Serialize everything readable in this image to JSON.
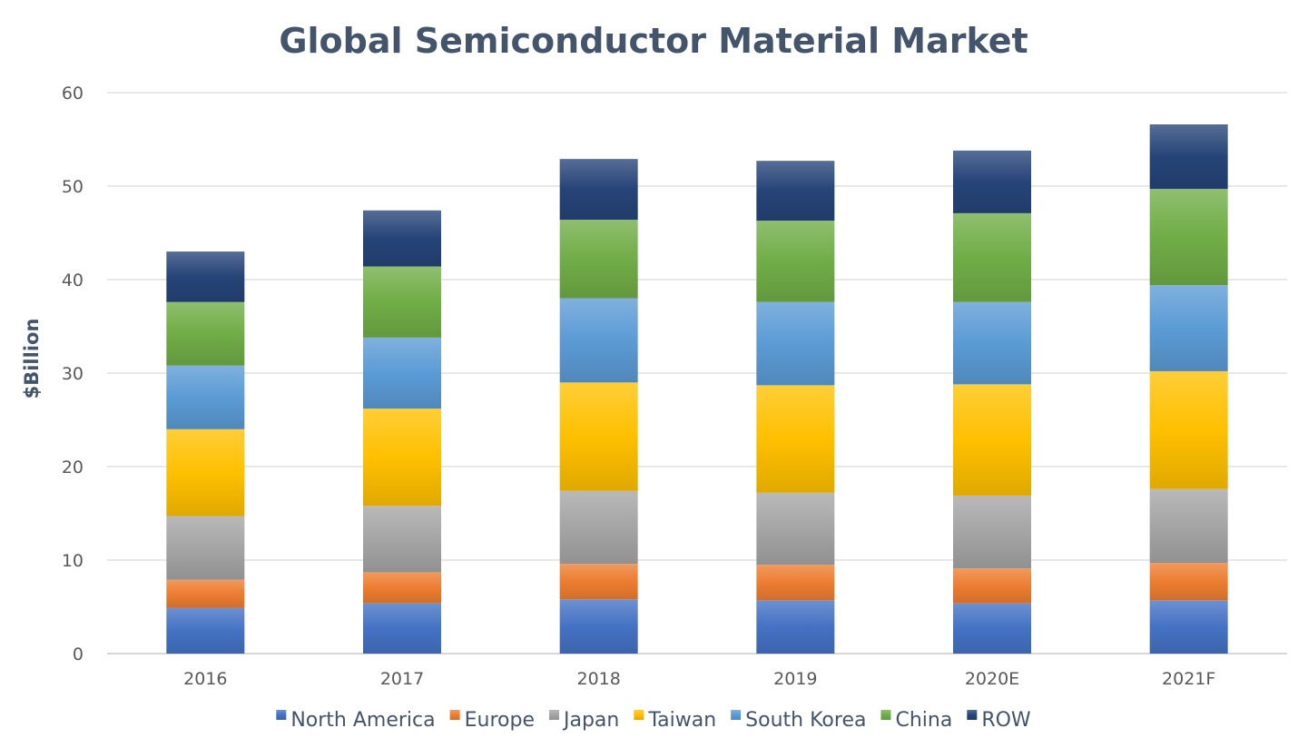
{
  "chart_data": {
    "type": "bar",
    "stacked": true,
    "title": "Global Semiconductor Material Market",
    "xlabel": "",
    "ylabel": "$Billion",
    "ylim": [
      0,
      60
    ],
    "yticks": [
      0,
      10,
      20,
      30,
      40,
      50,
      60
    ],
    "grid": true,
    "legend_position": "bottom",
    "categories": [
      "2016",
      "2017",
      "2018",
      "2019",
      "2020E",
      "2021F"
    ],
    "series": [
      {
        "name": "North America",
        "color": "#4472c4",
        "values": [
          4.9,
          5.4,
          5.8,
          5.7,
          5.4,
          5.7
        ]
      },
      {
        "name": "Europe",
        "color": "#ed7d31",
        "values": [
          3.0,
          3.3,
          3.8,
          3.8,
          3.7,
          4.0
        ]
      },
      {
        "name": "Japan",
        "color": "#a5a5a5",
        "values": [
          6.8,
          7.1,
          7.8,
          7.7,
          7.8,
          7.9
        ]
      },
      {
        "name": "Taiwan",
        "color": "#ffc000",
        "values": [
          9.3,
          10.4,
          11.6,
          11.5,
          11.9,
          12.6
        ]
      },
      {
        "name": "South Korea",
        "color": "#5b9bd5",
        "values": [
          6.8,
          7.6,
          9.0,
          8.9,
          8.8,
          9.2
        ]
      },
      {
        "name": "China",
        "color": "#70ad47",
        "values": [
          6.8,
          7.6,
          8.4,
          8.7,
          9.5,
          10.3
        ]
      },
      {
        "name": "ROW",
        "color": "#264478",
        "values": [
          5.4,
          6.0,
          6.5,
          6.4,
          6.7,
          6.9
        ]
      }
    ]
  }
}
